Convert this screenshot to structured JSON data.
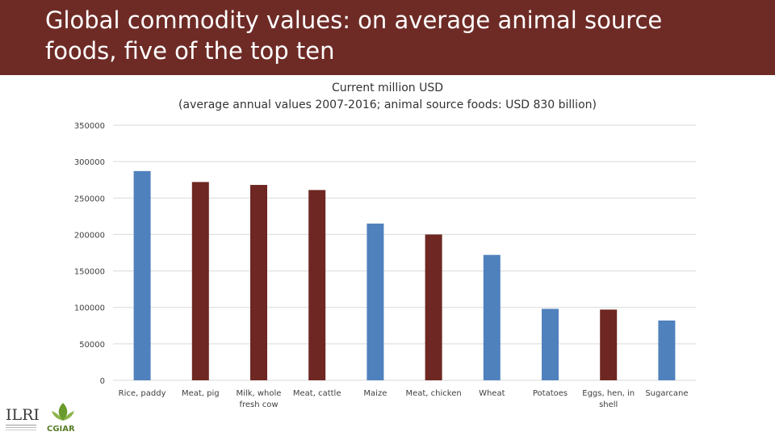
{
  "header": {
    "title_line1": "Global commodity values: on average animal source",
    "title_line2": "foods, five of the top ten",
    "background": "#6e2b26"
  },
  "logos": {
    "ilri": "ILRI",
    "cgiar": "CGIAR"
  },
  "colors": {
    "plant": "#4f81bd",
    "animal": "#6e2722",
    "grid": "#d9d9d9"
  },
  "chart_data": {
    "type": "bar",
    "title_line1": "Current million USD",
    "title_line2": "(average annual values 2007-2016; animal source foods: USD 830 billion)",
    "categories": [
      [
        "Rice, paddy"
      ],
      [
        "Meat, pig"
      ],
      [
        "Milk, whole",
        "fresh cow"
      ],
      [
        "Meat, cattle"
      ],
      [
        "Maize"
      ],
      [
        "Meat, chicken"
      ],
      [
        "Wheat"
      ],
      [
        "Potatoes"
      ],
      [
        "Eggs, hen, in",
        "shell"
      ],
      [
        "Sugarcane"
      ]
    ],
    "values": [
      287000,
      272000,
      268000,
      261000,
      215000,
      200000,
      172000,
      98000,
      97000,
      82000
    ],
    "group": [
      "plant",
      "animal",
      "animal",
      "animal",
      "plant",
      "animal",
      "plant",
      "plant",
      "animal",
      "plant"
    ],
    "ylim": [
      0,
      350000
    ],
    "yticks": [
      "0",
      "50000",
      "100000",
      "150000",
      "200000",
      "250000",
      "300000",
      "350000"
    ],
    "grid": true
  }
}
